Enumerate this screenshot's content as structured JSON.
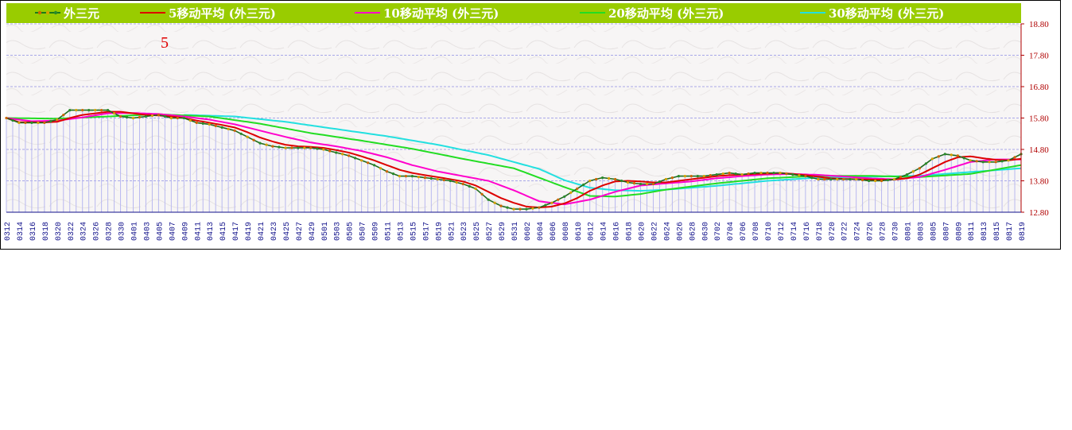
{
  "chart_data": {
    "type": "line",
    "legend": [
      {
        "name": "外三元",
        "color": "#1a7a1a"
      },
      {
        "name": "5移动平均 (外三元)",
        "color": "#dd0000"
      },
      {
        "name": "10移动平均 (外三元)",
        "color": "#ff00cc"
      },
      {
        "name": "20移动平均 (外三元)",
        "color": "#22dd22"
      },
      {
        "name": "30移动平均 (外三元)",
        "color": "#22e0e0"
      }
    ],
    "legend_bg": "#99cc00",
    "marker_label": "5",
    "y_ticks": [
      "18.80",
      "17.80",
      "16.80",
      "15.80",
      "14.80",
      "13.80",
      "12.80"
    ],
    "ylim": [
      12.8,
      18.8
    ],
    "x_labels": [
      "0312",
      "0314",
      "0316",
      "0318",
      "0320",
      "0322",
      "0324",
      "0326",
      "0328",
      "0330",
      "0401",
      "0403",
      "0405",
      "0407",
      "0409",
      "0411",
      "0413",
      "0415",
      "0417",
      "0419",
      "0421",
      "0423",
      "0425",
      "0427",
      "0429",
      "0501",
      "0503",
      "0505",
      "0507",
      "0509",
      "0511",
      "0513",
      "0515",
      "0517",
      "0519",
      "0521",
      "0523",
      "0525",
      "0527",
      "0529",
      "0531",
      "0602",
      "0604",
      "0606",
      "0608",
      "0610",
      "0612",
      "0614",
      "0616",
      "0618",
      "0620",
      "0622",
      "0624",
      "0626",
      "0628",
      "0630",
      "0702",
      "0704",
      "0706",
      "0708",
      "0710",
      "0712",
      "0714",
      "0716",
      "0718",
      "0720",
      "0722",
      "0724",
      "0726",
      "0728",
      "0730",
      "0801",
      "0803",
      "0805",
      "0807",
      "0809",
      "0811",
      "0813",
      "0815",
      "0817",
      "0819"
    ],
    "price_keypoints": [
      [
        0,
        15.8
      ],
      [
        1,
        15.65
      ],
      [
        3,
        15.65
      ],
      [
        4,
        15.75
      ],
      [
        5,
        16.05
      ],
      [
        6,
        16.05
      ],
      [
        7,
        16.05
      ],
      [
        8,
        16.05
      ],
      [
        9,
        15.85
      ],
      [
        10,
        15.8
      ],
      [
        11,
        15.85
      ],
      [
        12,
        15.9
      ],
      [
        13,
        15.8
      ],
      [
        14,
        15.8
      ],
      [
        15,
        15.65
      ],
      [
        16,
        15.6
      ],
      [
        17,
        15.5
      ],
      [
        18,
        15.4
      ],
      [
        19,
        15.2
      ],
      [
        20,
        15.0
      ],
      [
        21,
        14.9
      ],
      [
        22,
        14.85
      ],
      [
        23,
        14.85
      ],
      [
        24,
        14.85
      ],
      [
        25,
        14.8
      ],
      [
        26,
        14.7
      ],
      [
        27,
        14.6
      ],
      [
        28,
        14.45
      ],
      [
        29,
        14.3
      ],
      [
        30,
        14.1
      ],
      [
        31,
        13.95
      ],
      [
        32,
        13.95
      ],
      [
        33,
        13.9
      ],
      [
        34,
        13.85
      ],
      [
        35,
        13.8
      ],
      [
        36,
        13.7
      ],
      [
        37,
        13.55
      ],
      [
        38,
        13.2
      ],
      [
        39,
        13.0
      ],
      [
        40,
        12.9
      ],
      [
        41,
        12.9
      ],
      [
        42,
        12.95
      ],
      [
        43,
        13.1
      ],
      [
        44,
        13.3
      ],
      [
        45,
        13.55
      ],
      [
        46,
        13.8
      ],
      [
        47,
        13.9
      ],
      [
        48,
        13.85
      ],
      [
        49,
        13.75
      ],
      [
        50,
        13.7
      ],
      [
        51,
        13.7
      ],
      [
        52,
        13.85
      ],
      [
        53,
        13.95
      ],
      [
        54,
        13.95
      ],
      [
        55,
        13.95
      ],
      [
        56,
        14.0
      ],
      [
        57,
        14.05
      ],
      [
        58,
        14.0
      ],
      [
        59,
        14.05
      ],
      [
        60,
        14.05
      ],
      [
        61,
        14.05
      ],
      [
        62,
        14.0
      ],
      [
        63,
        13.95
      ],
      [
        64,
        13.85
      ],
      [
        65,
        13.85
      ],
      [
        66,
        13.85
      ],
      [
        67,
        13.85
      ],
      [
        68,
        13.8
      ],
      [
        69,
        13.8
      ],
      [
        70,
        13.85
      ],
      [
        71,
        14.0
      ],
      [
        72,
        14.2
      ],
      [
        73,
        14.5
      ],
      [
        74,
        14.65
      ],
      [
        75,
        14.6
      ],
      [
        76,
        14.45
      ],
      [
        77,
        14.4
      ],
      [
        78,
        14.4
      ],
      [
        79,
        14.45
      ],
      [
        80,
        14.65
      ]
    ],
    "ma5_keypoints": [
      [
        0,
        15.8
      ],
      [
        1,
        15.67
      ],
      [
        3,
        15.66
      ],
      [
        4,
        15.68
      ],
      [
        5,
        15.8
      ],
      [
        6,
        15.9
      ],
      [
        7,
        15.95
      ],
      [
        8,
        16.0
      ],
      [
        9,
        16.0
      ],
      [
        10,
        15.95
      ],
      [
        11,
        15.9
      ],
      [
        12,
        15.88
      ],
      [
        13,
        15.85
      ],
      [
        14,
        15.8
      ],
      [
        15,
        15.72
      ],
      [
        16,
        15.65
      ],
      [
        17,
        15.58
      ],
      [
        18,
        15.5
      ],
      [
        19,
        15.35
      ],
      [
        20,
        15.18
      ],
      [
        21,
        15.05
      ],
      [
        22,
        14.95
      ],
      [
        23,
        14.9
      ],
      [
        24,
        14.88
      ],
      [
        25,
        14.85
      ],
      [
        26,
        14.78
      ],
      [
        27,
        14.7
      ],
      [
        28,
        14.58
      ],
      [
        29,
        14.45
      ],
      [
        30,
        14.3
      ],
      [
        31,
        14.15
      ],
      [
        32,
        14.05
      ],
      [
        33,
        13.98
      ],
      [
        34,
        13.92
      ],
      [
        35,
        13.85
      ],
      [
        36,
        13.78
      ],
      [
        37,
        13.65
      ],
      [
        38,
        13.45
      ],
      [
        39,
        13.25
      ],
      [
        40,
        13.1
      ],
      [
        41,
        12.98
      ],
      [
        42,
        12.95
      ],
      [
        43,
        12.98
      ],
      [
        44,
        13.08
      ],
      [
        45,
        13.25
      ],
      [
        46,
        13.48
      ],
      [
        47,
        13.65
      ],
      [
        48,
        13.78
      ],
      [
        49,
        13.8
      ],
      [
        50,
        13.78
      ],
      [
        51,
        13.75
      ],
      [
        52,
        13.75
      ],
      [
        53,
        13.8
      ],
      [
        54,
        13.85
      ],
      [
        55,
        13.9
      ],
      [
        56,
        13.95
      ],
      [
        57,
        13.98
      ],
      [
        58,
        14.0
      ],
      [
        59,
        14.02
      ],
      [
        60,
        14.03
      ],
      [
        61,
        14.05
      ],
      [
        62,
        14.02
      ],
      [
        63,
        13.98
      ],
      [
        64,
        13.93
      ],
      [
        65,
        13.88
      ],
      [
        66,
        13.86
      ],
      [
        67,
        13.85
      ],
      [
        68,
        13.84
      ],
      [
        69,
        13.83
      ],
      [
        70,
        13.84
      ],
      [
        71,
        13.88
      ],
      [
        72,
        14.0
      ],
      [
        73,
        14.2
      ],
      [
        74,
        14.4
      ],
      [
        75,
        14.55
      ],
      [
        76,
        14.58
      ],
      [
        77,
        14.52
      ],
      [
        78,
        14.47
      ],
      [
        79,
        14.45
      ],
      [
        80,
        14.5
      ]
    ],
    "ma10_keypoints": [
      [
        0,
        15.8
      ],
      [
        2,
        15.7
      ],
      [
        4,
        15.72
      ],
      [
        6,
        15.82
      ],
      [
        8,
        15.95
      ],
      [
        10,
        15.96
      ],
      [
        12,
        15.93
      ],
      [
        14,
        15.85
      ],
      [
        16,
        15.75
      ],
      [
        18,
        15.6
      ],
      [
        20,
        15.4
      ],
      [
        22,
        15.2
      ],
      [
        24,
        15.02
      ],
      [
        26,
        14.9
      ],
      [
        28,
        14.75
      ],
      [
        30,
        14.55
      ],
      [
        32,
        14.3
      ],
      [
        34,
        14.1
      ],
      [
        36,
        13.95
      ],
      [
        38,
        13.8
      ],
      [
        40,
        13.5
      ],
      [
        42,
        13.15
      ],
      [
        44,
        13.05
      ],
      [
        46,
        13.2
      ],
      [
        48,
        13.45
      ],
      [
        50,
        13.65
      ],
      [
        52,
        13.72
      ],
      [
        54,
        13.78
      ],
      [
        56,
        13.88
      ],
      [
        58,
        13.95
      ],
      [
        60,
        14.0
      ],
      [
        62,
        14.02
      ],
      [
        64,
        13.99
      ],
      [
        66,
        13.94
      ],
      [
        68,
        13.88
      ],
      [
        70,
        13.85
      ],
      [
        72,
        13.92
      ],
      [
        74,
        14.15
      ],
      [
        76,
        14.4
      ],
      [
        78,
        14.48
      ],
      [
        80,
        14.48
      ]
    ],
    "ma20_keypoints": [
      [
        0,
        15.8
      ],
      [
        4,
        15.78
      ],
      [
        8,
        15.85
      ],
      [
        12,
        15.92
      ],
      [
        16,
        15.85
      ],
      [
        20,
        15.62
      ],
      [
        24,
        15.32
      ],
      [
        28,
        15.08
      ],
      [
        32,
        14.82
      ],
      [
        36,
        14.5
      ],
      [
        40,
        14.2
      ],
      [
        44,
        13.6
      ],
      [
        46,
        13.32
      ],
      [
        48,
        13.3
      ],
      [
        50,
        13.38
      ],
      [
        52,
        13.52
      ],
      [
        56,
        13.72
      ],
      [
        60,
        13.88
      ],
      [
        64,
        13.96
      ],
      [
        68,
        13.96
      ],
      [
        72,
        13.92
      ],
      [
        76,
        14.02
      ],
      [
        80,
        14.3
      ]
    ],
    "ma30_keypoints": [
      [
        14,
        15.9
      ],
      [
        18,
        15.85
      ],
      [
        22,
        15.68
      ],
      [
        26,
        15.45
      ],
      [
        30,
        15.22
      ],
      [
        34,
        14.95
      ],
      [
        38,
        14.62
      ],
      [
        42,
        14.18
      ],
      [
        44,
        13.82
      ],
      [
        46,
        13.58
      ],
      [
        48,
        13.5
      ],
      [
        50,
        13.48
      ],
      [
        52,
        13.52
      ],
      [
        56,
        13.64
      ],
      [
        60,
        13.8
      ],
      [
        64,
        13.9
      ],
      [
        68,
        13.93
      ],
      [
        72,
        13.96
      ],
      [
        76,
        14.08
      ],
      [
        80,
        14.2
      ]
    ]
  }
}
